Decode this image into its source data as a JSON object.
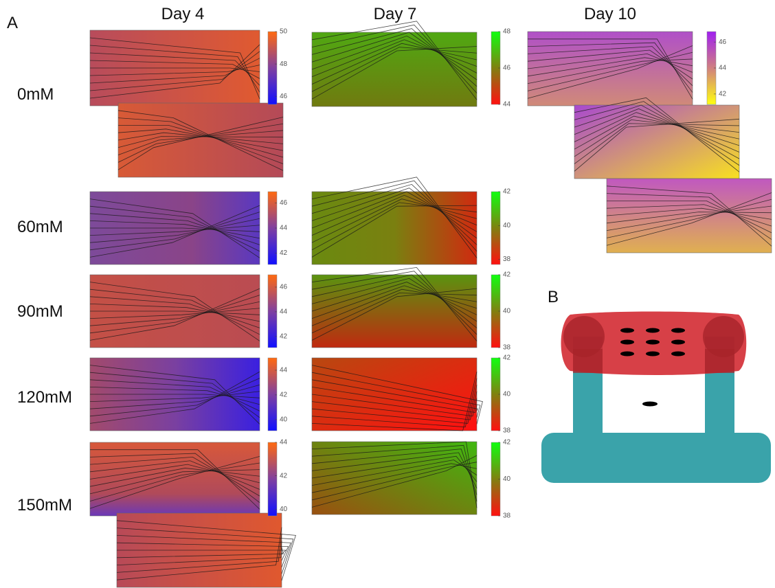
{
  "panel_a": {
    "label": "A",
    "rows": [
      "0mM",
      "60mM",
      "90mM",
      "120mM",
      "150mM"
    ],
    "columns": [
      {
        "title": "Day 4",
        "colorbars": [
          {
            "lim": [
              45.5,
              50
            ],
            "ticks": [
              46,
              48,
              50
            ],
            "colors": [
              "#1010ff",
              "#8040a0",
              "#ff6a10"
            ]
          },
          {
            "lim": [
              41.1,
              46.9
            ],
            "ticks": [
              42,
              44,
              46
            ],
            "colors": [
              "#1010ff",
              "#8040a0",
              "#ff6a10"
            ]
          },
          {
            "lim": [
              41.1,
              47
            ],
            "ticks": [
              42,
              44,
              46
            ],
            "colors": [
              "#1010ff",
              "#8040a0",
              "#ff6a10"
            ]
          },
          {
            "lim": [
              39.1,
              45
            ],
            "ticks": [
              40,
              42,
              44
            ],
            "colors": [
              "#1010ff",
              "#8040a0",
              "#ff6a10"
            ]
          },
          {
            "lim": [
              39.6,
              44
            ],
            "ticks": [
              40,
              42,
              44
            ],
            "colors": [
              "#1010ff",
              "#8040a0",
              "#ff6a10"
            ]
          }
        ]
      },
      {
        "title": "Day 7",
        "colorbars": [
          {
            "lim": [
              44,
              48
            ],
            "ticks": [
              44,
              46,
              48
            ],
            "colors": [
              "#ff1010",
              "#808010",
              "#10ff10"
            ]
          },
          {
            "lim": [
              37.7,
              42
            ],
            "ticks": [
              38,
              40,
              42
            ],
            "colors": [
              "#ff1010",
              "#808010",
              "#10ff10"
            ]
          },
          {
            "lim": [
              38,
              42
            ],
            "ticks": [
              38,
              40,
              42
            ],
            "colors": [
              "#ff1010",
              "#808010",
              "#10ff10"
            ]
          },
          {
            "lim": [
              38,
              42
            ],
            "ticks": [
              38,
              40,
              42
            ],
            "colors": [
              "#ff1010",
              "#808010",
              "#10ff10"
            ]
          },
          {
            "lim": [
              38,
              42
            ],
            "ticks": [
              38,
              40,
              42
            ],
            "colors": [
              "#ff1010",
              "#808010",
              "#10ff10"
            ]
          }
        ]
      },
      {
        "title": "Day 10",
        "colorbars": [
          {
            "lim": [
              41.2,
              46.8
            ],
            "ticks": [
              42,
              44,
              46
            ],
            "colors": [
              "#ffff10",
              "#d08080",
              "#a020f0"
            ]
          }
        ]
      }
    ]
  },
  "panel_b": {
    "label": "B"
  }
}
